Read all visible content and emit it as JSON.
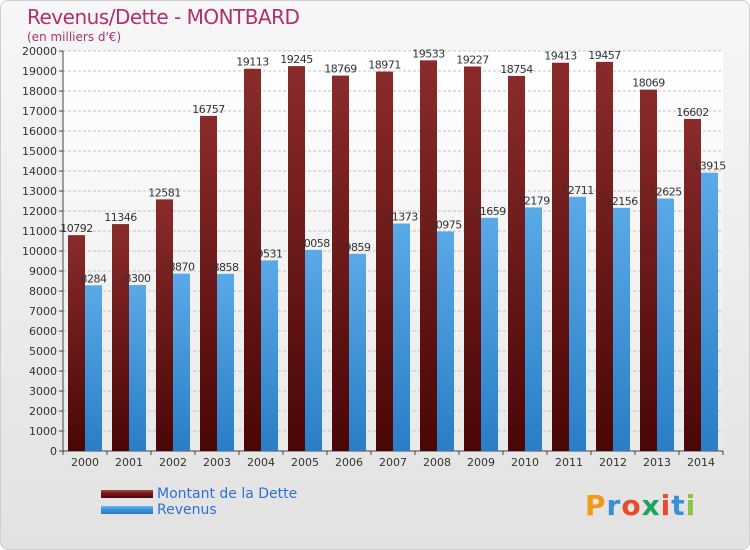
{
  "title": "Revenus/Dette - MONTBARD",
  "subtitle": "(en milliers d'€)",
  "logo": {
    "text": "Proxiti",
    "letter_colors": [
      "#f29a1a",
      "#3a8fd8",
      "#e84b2c",
      "#1ea35a",
      "#e84b2c",
      "#3a8fd8",
      "#8cc63f"
    ]
  },
  "colors": {
    "dette": "#7a1818",
    "revenus": "#3d95dc",
    "axis_text": "#333333",
    "value_text": "#333333"
  },
  "chart_data": {
    "type": "bar",
    "title": "Revenus/Dette - MONTBARD",
    "ylim": [
      0,
      20000
    ],
    "ytick_step": 1000,
    "grid": true,
    "legend_position": "bottom-left",
    "categories": [
      "2000",
      "2001",
      "2002",
      "2003",
      "2004",
      "2005",
      "2006",
      "2007",
      "2008",
      "2009",
      "2010",
      "2011",
      "2012",
      "2013",
      "2014"
    ],
    "series": [
      {
        "name": "Montant de la Dette",
        "values": [
          10792,
          11346,
          12581,
          16757,
          19113,
          19245,
          18769,
          18971,
          19533,
          19227,
          18754,
          19413,
          19457,
          18069,
          16602
        ]
      },
      {
        "name": "Revenus",
        "values": [
          8284,
          8300,
          8870,
          8858,
          9531,
          10058,
          9859,
          11373,
          10975,
          11659,
          12179,
          12711,
          12156,
          12625,
          13915
        ]
      }
    ]
  }
}
